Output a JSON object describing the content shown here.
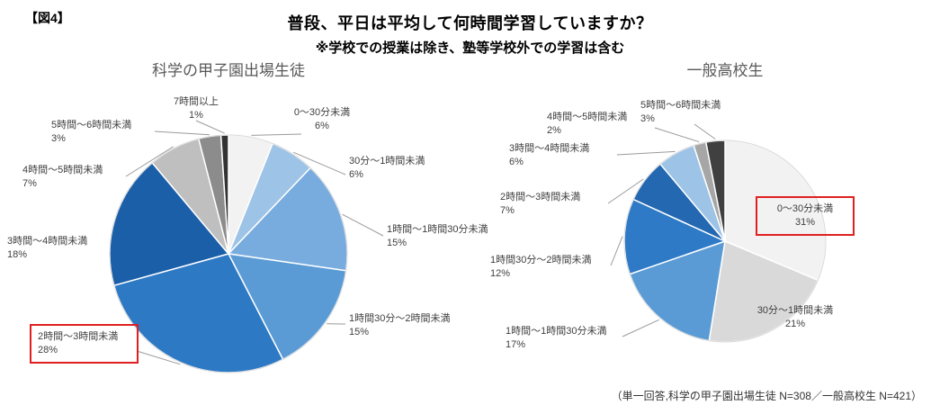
{
  "figure_tag": "【図4】",
  "title": "普段、平日は平均して何時間学習していますか？",
  "subtitle": "※学校での授業は除き、塾等学校外での学習は含む",
  "footnote": "（単一回答,科学の甲子園出場生徒 N=308／一般高校生 N=421）",
  "highlight_color": "#e02020",
  "chart_data": [
    {
      "type": "pie",
      "title": "科学の甲子園出場生徒",
      "n_label": "N=308",
      "start_angle": "12-oclock",
      "direction": "clockwise",
      "slices": [
        {
          "label": "0～30分未満",
          "value": 6,
          "color": "#f2f2f2"
        },
        {
          "label": "30分～1時間未満",
          "value": 6,
          "color": "#9dc3e6"
        },
        {
          "label": "1時間～1時間30分未満",
          "value": 15,
          "color": "#78acdf"
        },
        {
          "label": "1時間30分～2時間未満",
          "value": 15,
          "color": "#5b9bd5"
        },
        {
          "label": "2時間～3時間未満",
          "value": 28,
          "color": "#2e79c4",
          "highlighted": true
        },
        {
          "label": "3時間～4時間未満",
          "value": 18,
          "color": "#1b5fa9"
        },
        {
          "label": "4時間～5時間未満",
          "value": 7,
          "color": "#bfbfbf"
        },
        {
          "label": "5時間～6時間未満",
          "value": 3,
          "color": "#8c8c8c"
        },
        {
          "label": "7時間以上",
          "value": 1,
          "color": "#333333"
        }
      ]
    },
    {
      "type": "pie",
      "title": "一般高校生",
      "n_label": "N=421",
      "start_angle": "12-oclock",
      "direction": "clockwise",
      "slices": [
        {
          "label": "0～30分未満",
          "value": 31,
          "color": "#f2f2f2",
          "highlighted": true
        },
        {
          "label": "30分～1時間未満",
          "value": 21,
          "color": "#d9d9d9"
        },
        {
          "label": "1時間～1時間30分未満",
          "value": 17,
          "color": "#5b9bd5"
        },
        {
          "label": "1時間30分～2時間未満",
          "value": 12,
          "color": "#2e7ac6"
        },
        {
          "label": "2時間～3時間未満",
          "value": 7,
          "color": "#2368b0"
        },
        {
          "label": "3時間～4時間未満",
          "value": 6,
          "color": "#9dc3e6"
        },
        {
          "label": "4時間～5時間未満",
          "value": 2,
          "color": "#a6a6a6"
        },
        {
          "label": "5時間～6時間未満",
          "value": 3,
          "color": "#404040"
        }
      ]
    }
  ]
}
